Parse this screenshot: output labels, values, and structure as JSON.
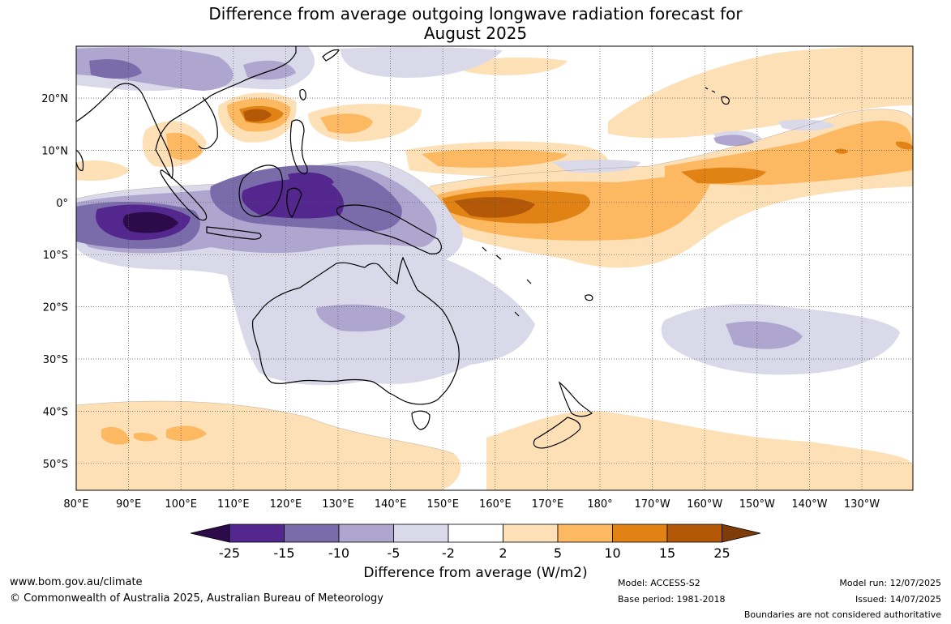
{
  "title": {
    "line1": "Difference from average outgoing longwave radiation forecast for",
    "line2": "August 2025"
  },
  "map": {
    "lat_labels": [
      "20°N",
      "10°N",
      "0°",
      "10°S",
      "20°S",
      "30°S",
      "40°S",
      "50°S"
    ],
    "lon_labels": [
      "80°E",
      "90°E",
      "100°E",
      "110°E",
      "120°E",
      "130°E",
      "140°E",
      "150°E",
      "160°E",
      "170°E",
      "180°",
      "170°W",
      "160°W",
      "150°W",
      "140°W",
      "130°W"
    ],
    "region": "Indo-Pacific",
    "colors": {
      "neg25": "#2d0a4a",
      "neg15": "#54278f",
      "neg10": "#7a6baa",
      "neg5": "#aea6cf",
      "neg2": "#d9d9ea",
      "zero": "#ffffff",
      "pos2": "#fee0b6",
      "pos5": "#fdb862",
      "pos10": "#e08214",
      "pos15": "#b35806",
      "pos25": "#7f3b08"
    }
  },
  "legend": {
    "ticks": [
      "-25",
      "-15",
      "-10",
      "-5",
      "-2",
      "2",
      "5",
      "10",
      "15",
      "25"
    ],
    "title": "Difference from average (W/m2)"
  },
  "footer": {
    "website": "www.bom.gov.au/climate",
    "copyright": "© Commonwealth of Australia 2025, Australian Bureau of Meteorology",
    "model": "Model: ACCESS-S2",
    "base_period": "Base period: 1981-2018",
    "model_run": "Model run: 12/07/2025",
    "issued": "Issued: 14/07/2025",
    "disclaimer": "Boundaries are not considered authoritative"
  }
}
